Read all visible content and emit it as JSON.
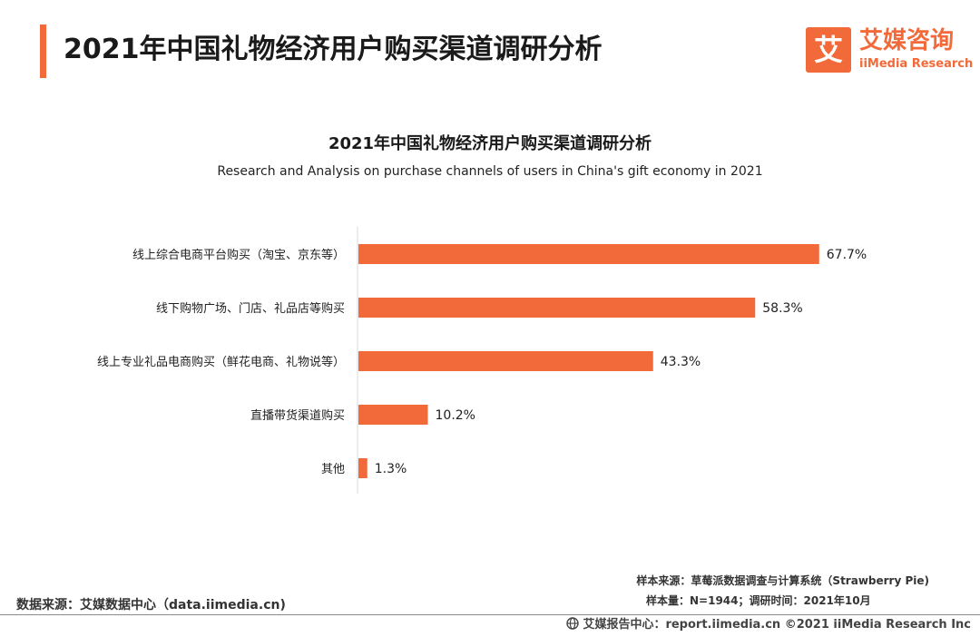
{
  "header": {
    "title": "2021年中国礼物经济用户购买渠道调研分析"
  },
  "logo": {
    "mark": "艾",
    "cn_name": "艾媒咨询",
    "en_name": "iiMedia Research"
  },
  "chart_data": {
    "type": "bar",
    "orientation": "horizontal",
    "title": "2021年中国礼物经济用户购买渠道调研分析",
    "subtitle": "Research and Analysis on purchase channels of users in China's gift economy in 2021",
    "categories": [
      "线上综合电商平台购买（淘宝、京东等）",
      "线下购物广场、门店、礼品店等购买",
      "线上专业礼品电商购买（鲜花电商、礼物说等）",
      "直播带货渠道购买",
      "其他"
    ],
    "values": [
      67.7,
      58.3,
      43.3,
      10.2,
      1.3
    ],
    "value_labels": [
      "67.7%",
      "58.3%",
      "43.3%",
      "10.2%",
      "1.3%"
    ],
    "unit": "%",
    "xlim": [
      0,
      100
    ],
    "grid": false,
    "legend": "none",
    "bar_color": "#f26a3a"
  },
  "footer": {
    "source": "数据来源：艾媒数据中心（data.iimedia.cn)",
    "sample_source": "样本来源：草莓派数据调查与计算系统（Strawberry Pie)",
    "sample_size": "样本量：N=1944；调研时间：2021年10月",
    "report": "艾媒报告中心：report.iimedia.cn ©2021 iiMedia Research Inc",
    "globe_icon": "globe-icon"
  }
}
